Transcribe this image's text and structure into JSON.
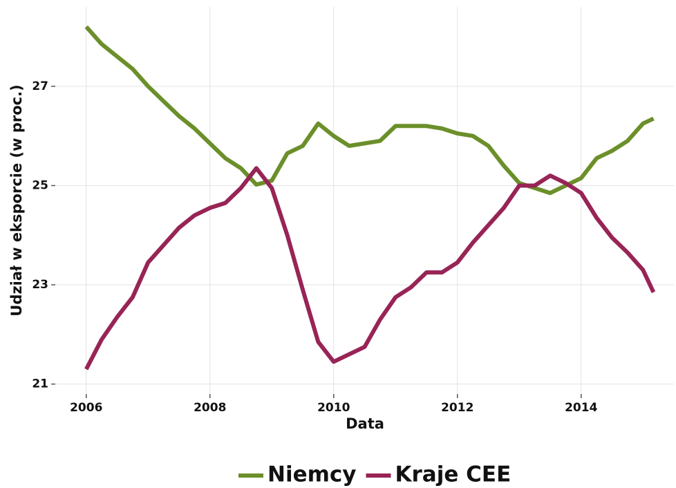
{
  "chart_data": {
    "type": "line",
    "xlabel": "Data",
    "ylabel": "Udział w eksporcie (w proc.)",
    "x": [
      2006.0,
      2006.25,
      2006.5,
      2006.75,
      2007.0,
      2007.25,
      2007.5,
      2007.75,
      2008.0,
      2008.25,
      2008.5,
      2008.75,
      2009.0,
      2009.25,
      2009.5,
      2009.75,
      2010.0,
      2010.25,
      2010.5,
      2010.75,
      2011.0,
      2011.25,
      2011.5,
      2011.75,
      2012.0,
      2012.25,
      2012.5,
      2012.75,
      2013.0,
      2013.25,
      2013.5,
      2013.75,
      2014.0,
      2014.25,
      2014.5,
      2014.75,
      2015.0,
      2015.17
    ],
    "series": [
      {
        "name": "Niemcy",
        "color": "#6b8f2a",
        "values": [
          28.2,
          27.85,
          27.6,
          27.35,
          27.0,
          26.7,
          26.4,
          26.15,
          25.85,
          25.55,
          25.35,
          25.02,
          25.1,
          25.65,
          25.8,
          26.25,
          26.0,
          25.8,
          25.85,
          25.9,
          26.2,
          26.2,
          26.2,
          26.15,
          26.05,
          26.0,
          25.8,
          25.4,
          25.05,
          24.95,
          24.85,
          25.0,
          25.15,
          25.55,
          25.7,
          25.9,
          26.25,
          26.35
        ]
      },
      {
        "name": "Kraje CEE",
        "color": "#982456",
        "values": [
          21.3,
          21.9,
          22.35,
          22.75,
          23.45,
          23.8,
          24.15,
          24.4,
          24.55,
          24.65,
          24.95,
          25.35,
          24.95,
          24.0,
          22.9,
          21.85,
          21.45,
          21.6,
          21.75,
          22.3,
          22.75,
          22.95,
          23.25,
          23.25,
          23.45,
          23.85,
          24.2,
          24.55,
          25.0,
          25.0,
          25.2,
          25.05,
          24.85,
          24.35,
          23.95,
          23.65,
          23.3,
          22.85
        ]
      }
    ],
    "xlim": [
      2005.5,
      2015.5
    ],
    "xticks": [
      2006,
      2008,
      2010,
      2012,
      2014
    ],
    "ylim": [
      20.8,
      28.6
    ],
    "yticks": [
      21,
      23,
      25,
      27
    ],
    "grid": true,
    "legend": "bottom"
  }
}
